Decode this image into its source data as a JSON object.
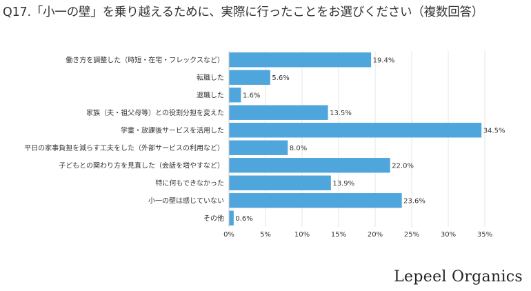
{
  "title": "Q17.「小一の壁」を乗り越えるために、実際に行ったことをお選びください（複数回答）",
  "brand": "Lepeel Organics",
  "colors": {
    "bar": "#4fa6dc",
    "grid": "#e6e6e6",
    "axis": "#cccccc"
  },
  "chart_data": {
    "type": "bar",
    "orientation": "horizontal",
    "title": "Q17.「小一の壁」を乗り越えるために、実際に行ったことをお選びください（複数回答）",
    "xlabel": "",
    "ylabel": "",
    "xlim": [
      0,
      35
    ],
    "ticks": [
      0,
      5,
      10,
      15,
      20,
      25,
      30,
      35
    ],
    "tick_labels": [
      "0%",
      "5%",
      "10%",
      "15%",
      "20%",
      "25%",
      "30%",
      "35%"
    ],
    "grid": true,
    "categories": [
      "働き方を調整した（時短・在宅・フレックスなど）",
      "転職した",
      "退職した",
      "家族（夫・祖父母等）との役割分担を変えた",
      "学童・放課後サービスを活用した",
      "平日の家事負担を減らす工夫をした（外部サービスの利用など）",
      "子どもとの関わり方を見直した（会話を増やすなど）",
      "特に何もできなかった",
      "小一の壁は感じていない",
      "その他"
    ],
    "values": [
      19.4,
      5.6,
      1.6,
      13.5,
      34.5,
      8.0,
      22.0,
      13.9,
      23.6,
      0.6
    ],
    "value_labels": [
      "19.4%",
      "5.6%",
      "1.6%",
      "13.5%",
      "34.5%",
      "8.0%",
      "22.0%",
      "13.9%",
      "23.6%",
      "0.6%"
    ]
  }
}
